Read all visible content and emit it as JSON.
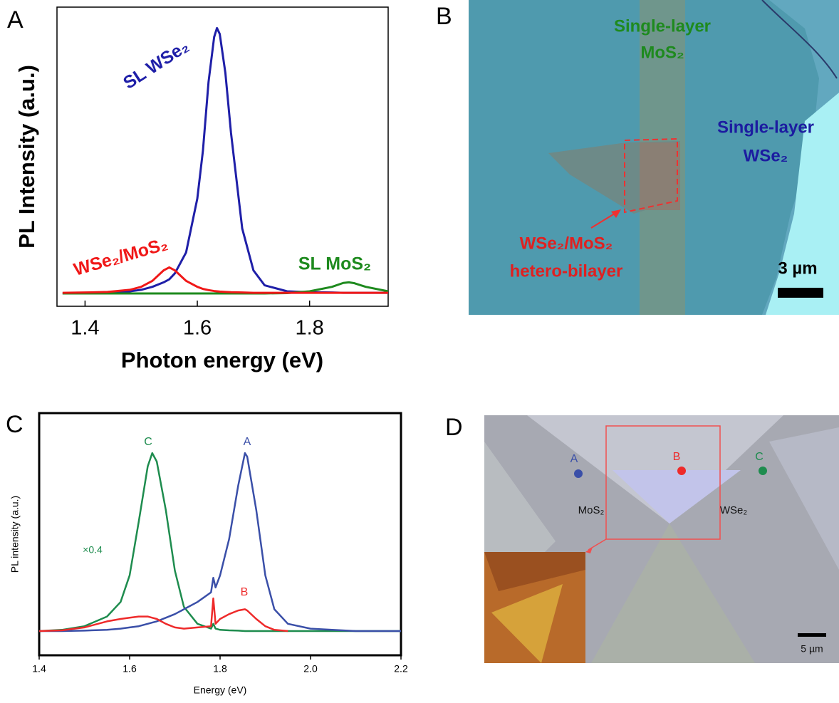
{
  "panels": [
    "A",
    "B",
    "C",
    "D"
  ],
  "chart_data": [
    {
      "type": "line",
      "xlabel": "Photon energy (eV)",
      "ylabel": "PL Intensity (a.u.)",
      "xlim": [
        1.35,
        1.94
      ],
      "ylim": [
        0,
        1
      ],
      "xticks": [
        1.4,
        1.6,
        1.8
      ],
      "x": [
        1.36,
        1.4,
        1.44,
        1.48,
        1.5,
        1.52,
        1.54,
        1.55,
        1.56,
        1.58,
        1.6,
        1.61,
        1.62,
        1.63,
        1.635,
        1.64,
        1.65,
        1.66,
        1.68,
        1.7,
        1.72,
        1.76,
        1.8,
        1.84,
        1.86,
        1.87,
        1.88,
        1.9,
        1.94
      ],
      "series": [
        {
          "name": "SL WSe₂",
          "color": "#1f1fa8",
          "values": [
            0.043,
            0.044,
            0.046,
            0.05,
            0.055,
            0.065,
            0.08,
            0.09,
            0.11,
            0.18,
            0.36,
            0.52,
            0.75,
            0.9,
            0.93,
            0.91,
            0.78,
            0.58,
            0.26,
            0.12,
            0.07,
            0.05,
            0.047,
            0.046,
            0.045,
            0.045,
            0.045,
            0.045,
            0.045
          ]
        },
        {
          "name": "SL MoS₂",
          "color": "#1e8a1e",
          "values": [
            0.043,
            0.043,
            0.043,
            0.043,
            0.043,
            0.043,
            0.043,
            0.043,
            0.043,
            0.043,
            0.043,
            0.043,
            0.043,
            0.043,
            0.043,
            0.043,
            0.043,
            0.043,
            0.043,
            0.043,
            0.043,
            0.044,
            0.05,
            0.065,
            0.078,
            0.08,
            0.077,
            0.065,
            0.05
          ]
        },
        {
          "name": "WSe₂/MoS₂",
          "color": "#f01818",
          "values": [
            0.045,
            0.046,
            0.048,
            0.055,
            0.065,
            0.085,
            0.12,
            0.13,
            0.12,
            0.085,
            0.065,
            0.058,
            0.054,
            0.051,
            0.05,
            0.049,
            0.048,
            0.047,
            0.046,
            0.045,
            0.045,
            0.045,
            0.045,
            0.045,
            0.045,
            0.045,
            0.045,
            0.045,
            0.045
          ]
        }
      ]
    },
    {
      "type": "line",
      "xlabel": "Energy (eV)",
      "ylabel": "PL intensity (a.u.)",
      "annotation": "×0.4",
      "xlim": [
        1.4,
        2.2
      ],
      "ylim": [
        0,
        1
      ],
      "xticks": [
        {
          "value": 1.4,
          "label": "1.4"
        },
        {
          "value": 1.6,
          "label": "1.6"
        },
        {
          "value": 1.8,
          "label": "1.8"
        },
        {
          "value": 2.0,
          "label": "2.0"
        },
        {
          "value": 2.2,
          "label": "2.2"
        }
      ],
      "x": [
        1.4,
        1.45,
        1.5,
        1.55,
        1.58,
        1.6,
        1.62,
        1.64,
        1.65,
        1.66,
        1.68,
        1.7,
        1.72,
        1.75,
        1.78,
        1.785,
        1.79,
        1.8,
        1.82,
        1.84,
        1.855,
        1.86,
        1.88,
        1.9,
        1.92,
        1.95,
        2.0,
        2.1,
        2.2
      ],
      "series": [
        {
          "name": "C",
          "color": "#1e8c4e",
          "values": [
            0.1,
            0.105,
            0.12,
            0.16,
            0.22,
            0.33,
            0.55,
            0.78,
            0.835,
            0.8,
            0.6,
            0.35,
            0.2,
            0.13,
            0.11,
            0.13,
            0.11,
            0.105,
            0.103,
            0.102,
            0.1,
            0.1,
            0.1,
            0.1,
            0.1,
            0.1,
            0.1,
            0.1,
            0.1
          ]
        },
        {
          "name": "A",
          "color": "#3a4fa8",
          "values": [
            0.1,
            0.1,
            0.102,
            0.105,
            0.11,
            0.115,
            0.12,
            0.13,
            0.135,
            0.14,
            0.155,
            0.17,
            0.19,
            0.22,
            0.26,
            0.32,
            0.28,
            0.33,
            0.48,
            0.7,
            0.835,
            0.82,
            0.6,
            0.33,
            0.19,
            0.13,
            0.11,
            0.1,
            0.1
          ]
        },
        {
          "name": "B",
          "color": "#ee2a2a",
          "values": [
            0.1,
            0.103,
            0.115,
            0.14,
            0.15,
            0.155,
            0.16,
            0.16,
            0.155,
            0.15,
            0.13,
            0.115,
            0.11,
            0.115,
            0.12,
            0.235,
            0.13,
            0.15,
            0.17,
            0.185,
            0.19,
            0.185,
            0.15,
            0.12,
            0.105,
            0.1,
            null,
            null,
            null
          ]
        }
      ]
    }
  ],
  "images": [
    {
      "labels": [
        "Single-layer",
        "MoS₂",
        "Single-layer",
        "WSe₂",
        "WSe₂/MoS₂",
        "hetero-bilayer"
      ],
      "scale_bar": "3 µm"
    },
    {
      "points": [
        "A",
        "B",
        "C"
      ],
      "labels": [
        "MoS₂",
        "WSe₂"
      ],
      "scale_bar": "5 µm"
    }
  ]
}
